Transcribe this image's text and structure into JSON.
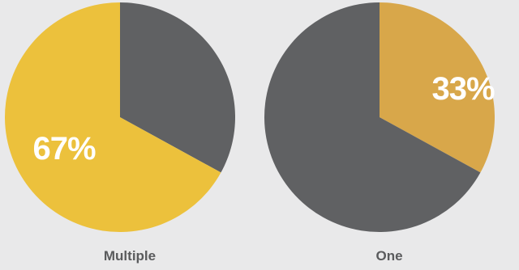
{
  "chart_data": [
    {
      "type": "pie",
      "category_label": "Multiple",
      "slices": [
        {
          "value": 67,
          "color": "#ecc13c",
          "label": "67%"
        },
        {
          "value": 33,
          "color": "#606163",
          "label": ""
        }
      ],
      "start": "top-clockwise-gray-first"
    },
    {
      "type": "pie",
      "category_label": "One",
      "slices": [
        {
          "value": 33,
          "color": "#d8a74a",
          "label": "33%"
        },
        {
          "value": 67,
          "color": "#606163",
          "label": ""
        }
      ],
      "start": "top-clockwise-highlight-first"
    }
  ]
}
